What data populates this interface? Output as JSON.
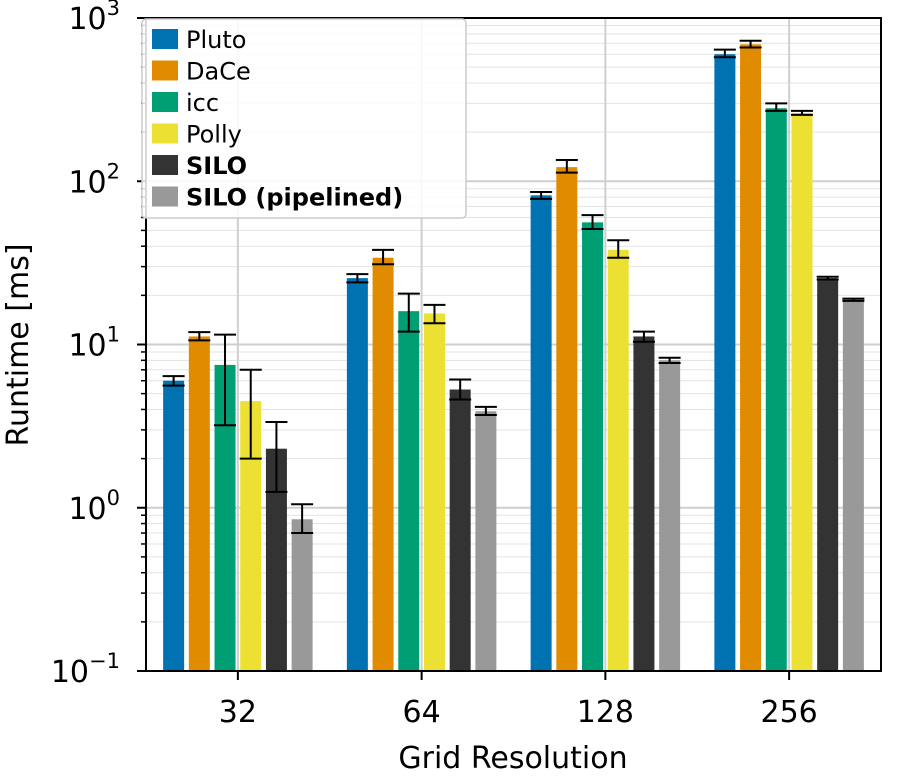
{
  "chart_data": {
    "type": "bar",
    "xlabel": "Grid Resolution",
    "ylabel": "Runtime [ms]",
    "yscale": "log",
    "ylim": [
      0.1,
      1000
    ],
    "yticks": [
      {
        "value": 0.1,
        "base": "10",
        "exp": "−1"
      },
      {
        "value": 1,
        "base": "10",
        "exp": "0"
      },
      {
        "value": 10,
        "base": "10",
        "exp": "1"
      },
      {
        "value": 100,
        "base": "10",
        "exp": "2"
      },
      {
        "value": 1000,
        "base": "10",
        "exp": "3"
      }
    ],
    "grid": true,
    "legend_placement": "top-left",
    "categories": [
      "32",
      "64",
      "128",
      "256"
    ],
    "series": [
      {
        "name": "Pluto",
        "color": "#0072b2",
        "bold": false,
        "values": [
          6.0,
          25.5,
          82,
          600
        ],
        "err_low": [
          5.6,
          24.0,
          78,
          575
        ],
        "err_high": [
          6.4,
          27.0,
          86,
          640
        ]
      },
      {
        "name": "DaCe",
        "color": "#e08b00",
        "bold": false,
        "values": [
          11.2,
          34,
          122,
          690
        ],
        "err_low": [
          10.6,
          31,
          113,
          660
        ],
        "err_high": [
          11.9,
          38,
          135,
          725
        ]
      },
      {
        "name": "icc",
        "color": "#009e73",
        "bold": false,
        "values": [
          7.5,
          16,
          56,
          280
        ],
        "err_low": [
          3.2,
          12,
          51,
          270
        ],
        "err_high": [
          11.5,
          20.5,
          62,
          300
        ]
      },
      {
        "name": "Polly",
        "color": "#ece133",
        "bold": false,
        "values": [
          4.5,
          15.5,
          38,
          262
        ],
        "err_low": [
          2.0,
          13.5,
          34,
          255
        ],
        "err_high": [
          7.0,
          17.5,
          43.5,
          270
        ]
      },
      {
        "name": "SILO",
        "color": "#333333",
        "bold": true,
        "values": [
          2.3,
          5.3,
          11.2,
          25.5
        ],
        "err_low": [
          1.25,
          4.6,
          10.4,
          25.0
        ],
        "err_high": [
          3.35,
          6.1,
          12.0,
          26.0
        ]
      },
      {
        "name": "SILO (pipelined)",
        "color": "#999999",
        "bold": true,
        "values": [
          0.85,
          3.9,
          8.0,
          18.8
        ],
        "err_low": [
          0.7,
          3.7,
          7.7,
          18.5
        ],
        "err_high": [
          1.05,
          4.15,
          8.3,
          19.1
        ]
      }
    ]
  }
}
